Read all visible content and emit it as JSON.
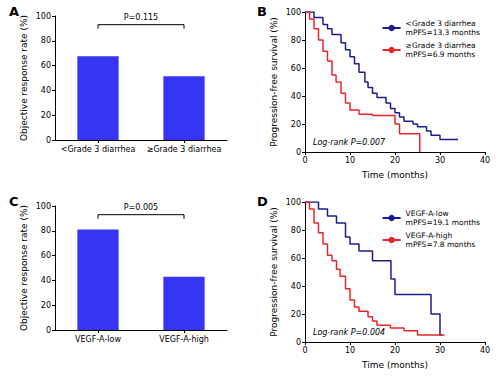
{
  "chart_data": [
    {
      "type": "bar",
      "panel": "A",
      "ylabel": "Objective response rate (%)",
      "categories": [
        "<Grade 3 diarrhea",
        "≥Grade 3 diarrhea"
      ],
      "values": [
        67.5,
        51.5
      ],
      "color": "#3535f2",
      "ylim": [
        0,
        100
      ],
      "yticks": [
        0,
        20,
        40,
        60,
        80,
        100
      ],
      "grid": false,
      "annotations": [
        "P=0.115"
      ]
    },
    {
      "type": "line",
      "panel": "B",
      "xlabel": "Time (months)",
      "ylabel": "Progression-free survival (%)",
      "xlim": [
        0,
        40
      ],
      "xticks": [
        0,
        10,
        20,
        30,
        40
      ],
      "ylim": [
        0,
        100
      ],
      "yticks": [
        0,
        20,
        40,
        60,
        80,
        100
      ],
      "grid": false,
      "line_style": "step",
      "legend": "upper right",
      "annotations": [
        "Log-rank P=0.007"
      ],
      "series": [
        {
          "name": "<Grade 3 diarrhea",
          "legend_note": "mPFS=13.3 months",
          "color": "#1c1c8c",
          "x": [
            0,
            2,
            4,
            5,
            6,
            8,
            9,
            10,
            11,
            12,
            13.3,
            14,
            15,
            16,
            18,
            19,
            20,
            21,
            22,
            24,
            25,
            27,
            28,
            30,
            34
          ],
          "values": [
            100,
            96,
            91,
            88,
            84,
            78,
            73,
            68,
            63,
            57,
            50,
            46,
            42,
            39,
            35,
            31,
            28,
            25,
            22,
            20,
            18,
            15,
            12,
            9,
            9
          ]
        },
        {
          "name": "≥Grade 3 diarrhea",
          "legend_note": "mPFS=6.9 months",
          "color": "#e8262a",
          "x": [
            0,
            1,
            2,
            3,
            4,
            5,
            6,
            6.9,
            8,
            9,
            10,
            12,
            15,
            20,
            21,
            25.5
          ],
          "values": [
            100,
            95,
            88,
            80,
            72,
            65,
            55,
            50,
            42,
            35,
            30,
            27,
            26,
            20,
            13,
            0
          ]
        }
      ]
    },
    {
      "type": "bar",
      "panel": "C",
      "ylabel": "Objective response rate (%)",
      "categories": [
        "VEGF-A-low",
        "VEGF-A-high"
      ],
      "values": [
        81,
        43
      ],
      "color": "#3535f2",
      "ylim": [
        0,
        100
      ],
      "yticks": [
        0,
        20,
        40,
        60,
        80,
        100
      ],
      "grid": false,
      "annotations": [
        "P=0.005"
      ]
    },
    {
      "type": "line",
      "panel": "D",
      "xlabel": "Time (months)",
      "ylabel": "Progression-free survival (%)",
      "xlim": [
        0,
        40
      ],
      "xticks": [
        0,
        10,
        20,
        30,
        40
      ],
      "ylim": [
        0,
        100
      ],
      "yticks": [
        0,
        20,
        40,
        60,
        80,
        100
      ],
      "grid": false,
      "line_style": "step",
      "legend": "upper right",
      "annotations": [
        "Log-rank P=0.004"
      ],
      "series": [
        {
          "name": "VEGF-A-low",
          "legend_note": "mPFS=19.1 months",
          "color": "#1c1c8c",
          "x": [
            0,
            3,
            5,
            7,
            9,
            10,
            12,
            15,
            19.1,
            20,
            28,
            30,
            30.5
          ],
          "values": [
            100,
            95,
            90,
            85,
            75,
            70,
            65,
            58,
            45,
            34,
            20,
            5,
            5
          ]
        },
        {
          "name": "VEGF-A-high",
          "legend_note": "mPFS=7.8 months",
          "color": "#e8262a",
          "x": [
            0,
            1,
            2,
            3,
            4,
            5,
            6,
            7,
            7.8,
            9,
            10,
            11,
            12,
            14,
            15,
            16,
            19,
            22,
            25,
            31
          ],
          "values": [
            100,
            95,
            85,
            78,
            70,
            62,
            58,
            52,
            47,
            38,
            30,
            25,
            22,
            18,
            15,
            12,
            10,
            8,
            5,
            5
          ]
        }
      ]
    }
  ]
}
